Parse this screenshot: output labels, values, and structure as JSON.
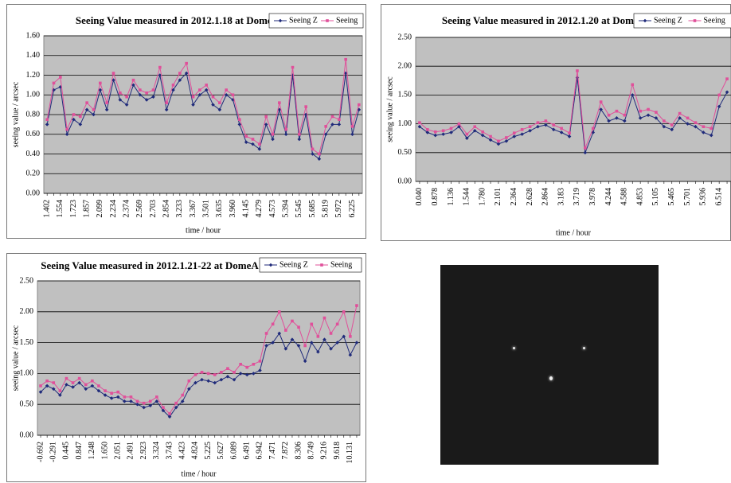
{
  "chart_data": [
    {
      "type": "line",
      "title": "Seeing Value measured in 2012.1.18 at DomeA",
      "x_label": "time / hour",
      "y_label": "seeing value / arcsec",
      "categories": [
        "1.402",
        null,
        "1.554",
        null,
        "1.723",
        null,
        "1.857",
        null,
        "2.099",
        null,
        "2.234",
        null,
        "2.374",
        null,
        "2.569",
        null,
        "2.703",
        null,
        "2.854",
        null,
        "3.233",
        null,
        "3.367",
        null,
        "3.501",
        null,
        "3.635",
        null,
        "3.960",
        null,
        "4.145",
        null,
        "4.279",
        null,
        "4.573",
        null,
        "5.394",
        null,
        "5.545",
        null,
        "5.685",
        null,
        "5.819",
        null,
        "5.972",
        null,
        "6.225",
        null
      ],
      "series": [
        {
          "name": "Seeing Z",
          "color": "#1f2a7a",
          "values": [
            0.7,
            1.05,
            1.08,
            0.6,
            0.75,
            0.7,
            0.85,
            0.8,
            1.05,
            0.85,
            1.15,
            0.95,
            0.9,
            1.1,
            1.0,
            0.95,
            0.98,
            1.2,
            0.85,
            1.05,
            1.15,
            1.22,
            0.9,
            1.0,
            1.05,
            0.9,
            0.85,
            1.0,
            0.95,
            0.7,
            0.52,
            0.5,
            0.45,
            0.7,
            0.55,
            0.85,
            0.6,
            1.2,
            0.55,
            0.8,
            0.4,
            0.35,
            0.6,
            0.7,
            0.7,
            1.22,
            0.6,
            0.85
          ]
        },
        {
          "name": "Seeing",
          "color": "#e0509a",
          "values": [
            0.75,
            1.12,
            1.18,
            0.65,
            0.8,
            0.78,
            0.92,
            0.85,
            1.12,
            0.92,
            1.22,
            1.02,
            0.98,
            1.15,
            1.05,
            1.02,
            1.05,
            1.28,
            0.92,
            1.1,
            1.22,
            1.32,
            0.98,
            1.05,
            1.1,
            0.98,
            0.92,
            1.05,
            1.0,
            0.75,
            0.58,
            0.55,
            0.5,
            0.78,
            0.6,
            0.92,
            0.65,
            1.28,
            0.6,
            0.88,
            0.45,
            0.4,
            0.68,
            0.78,
            0.75,
            1.36,
            0.68,
            0.9
          ]
        }
      ],
      "ylim": [
        0,
        1.6
      ],
      "yticks": [
        {
          "value": 0,
          "label": "0.00"
        },
        {
          "value": 0.2,
          "label": "0.20"
        },
        {
          "value": 0.4,
          "label": "0.40"
        },
        {
          "value": 0.6,
          "label": "0.60"
        },
        {
          "value": 0.8,
          "label": "0.80"
        },
        {
          "value": 1.0,
          "label": "1.00"
        },
        {
          "value": 1.2,
          "label": "1.20"
        },
        {
          "value": 1.4,
          "label": "1.40"
        },
        {
          "value": 1.6,
          "label": "1.60"
        }
      ],
      "grid": true
    },
    {
      "type": "line",
      "title": "Seeing Value measured in 2012.1.20 at DomeA",
      "x_label": "time / hour",
      "y_label": "seeing value / arcsec",
      "categories": [
        "0.040",
        null,
        "0.878",
        null,
        "1.136",
        null,
        "1.544",
        null,
        "1.780",
        null,
        "2.101",
        null,
        "2.364",
        null,
        "2.628",
        null,
        "2.864",
        null,
        "3.183",
        null,
        "3.719",
        null,
        "3.978",
        null,
        "4.244",
        null,
        "4.588",
        null,
        "4.853",
        null,
        "5.105",
        null,
        "5.465",
        null,
        "5.701",
        null,
        "5.936",
        null,
        "6.514",
        null
      ],
      "series": [
        {
          "name": "Seeing Z",
          "color": "#1f2a7a",
          "values": [
            0.95,
            0.85,
            0.8,
            0.82,
            0.85,
            0.95,
            0.75,
            0.88,
            0.8,
            0.72,
            0.65,
            0.7,
            0.78,
            0.82,
            0.88,
            0.95,
            0.98,
            0.9,
            0.85,
            0.78,
            1.8,
            0.5,
            0.85,
            1.25,
            1.05,
            1.1,
            1.05,
            1.5,
            1.1,
            1.15,
            1.1,
            0.95,
            0.9,
            1.1,
            1.0,
            0.95,
            0.85,
            0.8,
            1.3,
            1.55
          ]
        },
        {
          "name": "Seeing",
          "color": "#e0509a",
          "values": [
            1.02,
            0.9,
            0.86,
            0.88,
            0.92,
            1.0,
            0.82,
            0.95,
            0.86,
            0.78,
            0.7,
            0.76,
            0.84,
            0.9,
            0.95,
            1.02,
            1.05,
            0.98,
            0.92,
            0.84,
            1.92,
            0.58,
            0.92,
            1.38,
            1.15,
            1.22,
            1.15,
            1.68,
            1.22,
            1.25,
            1.2,
            1.05,
            0.98,
            1.18,
            1.1,
            1.02,
            0.95,
            0.92,
            1.5,
            1.78
          ]
        }
      ],
      "ylim": [
        0,
        2.5
      ],
      "yticks": [
        {
          "value": 0,
          "label": "0.00"
        },
        {
          "value": 0.5,
          "label": "0.50"
        },
        {
          "value": 1.0,
          "label": "1.00"
        },
        {
          "value": 1.5,
          "label": "1.50"
        },
        {
          "value": 2.0,
          "label": "2.00"
        },
        {
          "value": 2.5,
          "label": "2.50"
        }
      ],
      "grid": true
    },
    {
      "type": "line",
      "title": "Seeing Value measured in 2012.1.21-22 at DomeA",
      "x_label": "time / hour",
      "y_label": "seeing value / arcsec",
      "categories": [
        "-0.692",
        null,
        "-0.291",
        null,
        "0.445",
        null,
        "0.847",
        null,
        "1.248",
        null,
        "1.650",
        null,
        "2.051",
        null,
        "2.491",
        null,
        "2.923",
        null,
        "3.324",
        null,
        "3.743",
        null,
        "4.423",
        null,
        "4.824",
        null,
        "5.225",
        null,
        "5.627",
        null,
        "6.089",
        null,
        "6.491",
        null,
        "6.942",
        null,
        "7.471",
        null,
        "7.872",
        null,
        "8.306",
        null,
        "8.749",
        null,
        "9.216",
        null,
        "9.618",
        null,
        "10.131",
        null
      ],
      "series": [
        {
          "name": "Seeing Z",
          "color": "#1f2a7a",
          "values": [
            0.7,
            0.8,
            0.75,
            0.65,
            0.82,
            0.78,
            0.85,
            0.75,
            0.8,
            0.72,
            0.65,
            0.6,
            0.62,
            0.55,
            0.55,
            0.5,
            0.45,
            0.48,
            0.55,
            0.4,
            0.3,
            0.45,
            0.55,
            0.75,
            0.85,
            0.9,
            0.88,
            0.85,
            0.9,
            0.95,
            0.9,
            1.0,
            0.98,
            1.0,
            1.05,
            1.45,
            1.5,
            1.65,
            1.4,
            1.55,
            1.45,
            1.2,
            1.5,
            1.35,
            1.55,
            1.4,
            1.5,
            1.6,
            1.3,
            1.5
          ]
        },
        {
          "name": "Seeing",
          "color": "#e0509a",
          "values": [
            0.8,
            0.88,
            0.85,
            0.72,
            0.92,
            0.85,
            0.92,
            0.82,
            0.88,
            0.8,
            0.72,
            0.68,
            0.7,
            0.62,
            0.62,
            0.55,
            0.52,
            0.55,
            0.62,
            0.45,
            0.35,
            0.52,
            0.65,
            0.88,
            0.98,
            1.02,
            1.0,
            0.98,
            1.02,
            1.08,
            1.02,
            1.15,
            1.1,
            1.15,
            1.2,
            1.65,
            1.8,
            2.0,
            1.7,
            1.85,
            1.75,
            1.45,
            1.8,
            1.6,
            1.9,
            1.65,
            1.8,
            2.0,
            1.6,
            2.1
          ]
        }
      ],
      "ylim": [
        0,
        2.5
      ],
      "yticks": [
        {
          "value": 0,
          "label": "0.00"
        },
        {
          "value": 0.5,
          "label": "0.50"
        },
        {
          "value": 1.0,
          "label": "1.00"
        },
        {
          "value": 1.5,
          "label": "1.50"
        },
        {
          "value": 2.0,
          "label": "2.00"
        },
        {
          "value": 2.5,
          "label": "2.50"
        }
      ],
      "grid": true
    }
  ]
}
